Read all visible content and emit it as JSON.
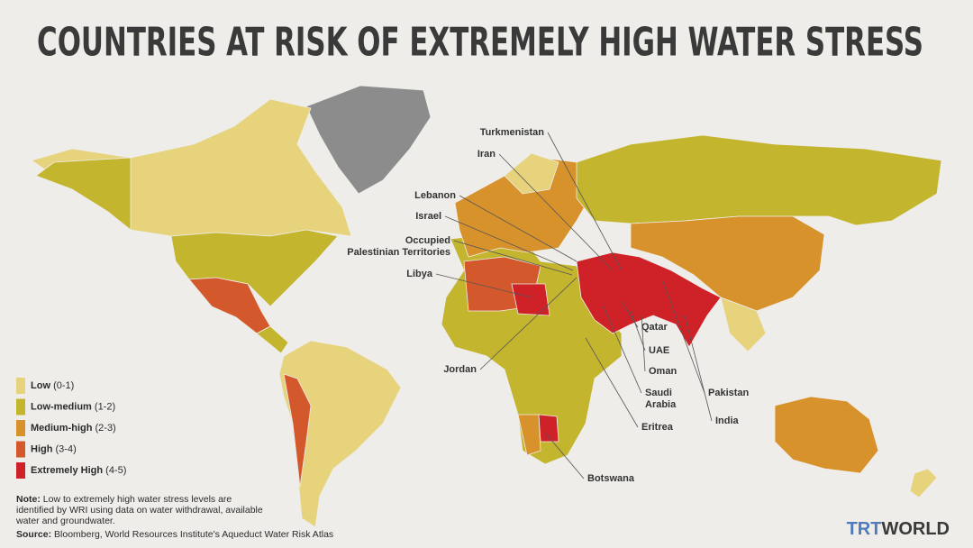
{
  "title": "COUNTRIES AT RISK OF EXTREMELY HIGH WATER STRESS",
  "legend": [
    {
      "label": "Low",
      "range": "(0-1)",
      "color": "#e6d37c"
    },
    {
      "label": "Low-medium",
      "range": "(1-2)",
      "color": "#c4b52f"
    },
    {
      "label": "Medium-high",
      "range": "(2-3)",
      "color": "#d8922b"
    },
    {
      "label": "High",
      "range": "(3-4)",
      "color": "#d3582b"
    },
    {
      "label": "Extremely High",
      "range": "(4-5)",
      "color": "#cf2228"
    }
  ],
  "countries": [
    {
      "lines": [
        "Turkmenistan"
      ]
    },
    {
      "lines": [
        "Iran"
      ]
    },
    {
      "lines": [
        "Lebanon"
      ]
    },
    {
      "lines": [
        "Israel"
      ]
    },
    {
      "lines": [
        "Occupied",
        "Palestinian Territories"
      ]
    },
    {
      "lines": [
        "Libya"
      ]
    },
    {
      "lines": [
        "Jordan"
      ]
    },
    {
      "lines": [
        "Qatar"
      ]
    },
    {
      "lines": [
        "UAE"
      ]
    },
    {
      "lines": [
        "Oman"
      ]
    },
    {
      "lines": [
        "Saudi",
        "Arabia"
      ]
    },
    {
      "lines": [
        "Eritrea"
      ]
    },
    {
      "lines": [
        "Pakistan"
      ]
    },
    {
      "lines": [
        "India"
      ]
    },
    {
      "lines": [
        "Botswana"
      ]
    }
  ],
  "note": {
    "label": "Note:",
    "lines": [
      "Low to extremely high water stress levels are",
      "identified by WRI using data on water withdrawal, available",
      "water and groundwater."
    ]
  },
  "source": {
    "label": "Source:",
    "text": "Bloomberg, World Resources Institute's Aqueduct Water Risk Atlas"
  },
  "logo": {
    "part1": "TRT",
    "part2": "WORLD"
  }
}
